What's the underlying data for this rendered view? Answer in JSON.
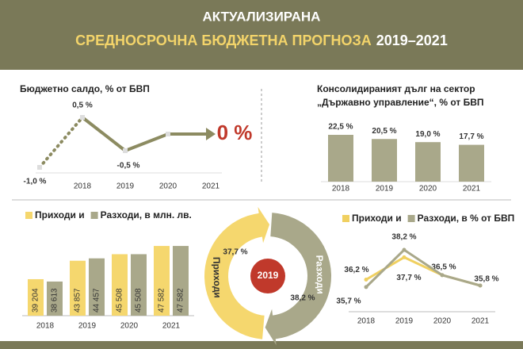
{
  "header": {
    "title": "АКТУАЛИЗИРАНА",
    "subtitle": "СРЕДНОСРОЧНА БЮДЖЕТНА ПРОГНОЗА",
    "period": "2019–2021"
  },
  "chart_data": [
    {
      "type": "line",
      "title": "Бюджетно салдо, % от БВП",
      "categories": [
        null,
        "2018",
        "2019",
        "2020",
        "2021"
      ],
      "values": [
        -1.0,
        0.5,
        -0.5,
        0,
        0
      ],
      "value_labels": [
        "-1,0 %",
        "0,5 %",
        "-0,5 %",
        null,
        "0 %"
      ],
      "color": "#8c8b61"
    },
    {
      "type": "bar",
      "title": [
        "Консолидираният дълг на сектор",
        "„Държавно управление“, % от БВП"
      ],
      "categories": [
        "2018",
        "2019",
        "2020",
        "2021"
      ],
      "values": [
        22.5,
        20.5,
        19.0,
        17.7
      ],
      "value_labels": [
        "22,5 %",
        "20,5 %",
        "19,0 %",
        "17,7 %"
      ],
      "color": "#a9a88a"
    },
    {
      "type": "bar",
      "categories": [
        "2018",
        "2019",
        "2020",
        "2021"
      ],
      "series": [
        {
          "name": "Приходи и",
          "color": "#f5d76e",
          "values": [
            39204,
            43857,
            45508,
            47582
          ],
          "value_labels": [
            "39 204",
            "43 857",
            "45 508",
            "47 582"
          ]
        },
        {
          "name": "Разходи, в млн. лв.",
          "color": "#a9a88a",
          "values": [
            38613,
            44457,
            45508,
            47582
          ],
          "value_labels": [
            "38 613",
            "44 457",
            "45 508",
            "47 582"
          ]
        }
      ],
      "ylim": [
        30000,
        50000
      ]
    },
    {
      "type": "donut",
      "center_label": "2019",
      "categories": [
        "Приходи",
        "Разходи"
      ],
      "values": [
        37.7,
        38.2
      ],
      "value_labels": [
        "37,7 %",
        "38,2 %"
      ],
      "colors": [
        "#f5d76e",
        "#a9a88a"
      ],
      "center_color": "#c0392b"
    },
    {
      "type": "line",
      "categories": [
        "2018",
        "2019",
        "2020",
        "2021"
      ],
      "series": [
        {
          "name": "Приходи и",
          "color": "#f0d060",
          "values": [
            36.2,
            37.7,
            36.5,
            35.8
          ],
          "value_labels": [
            "36,2 %",
            "37,7 %",
            "36,5 %",
            "35,8 %"
          ]
        },
        {
          "name": "Разходи, в % от БВП",
          "color": "#a9a88a",
          "values": [
            35.7,
            38.2,
            36.5,
            35.8
          ],
          "value_labels": [
            "35,7 %",
            "38,2 %",
            null,
            null
          ]
        }
      ],
      "ylim": [
        35,
        39
      ]
    }
  ]
}
